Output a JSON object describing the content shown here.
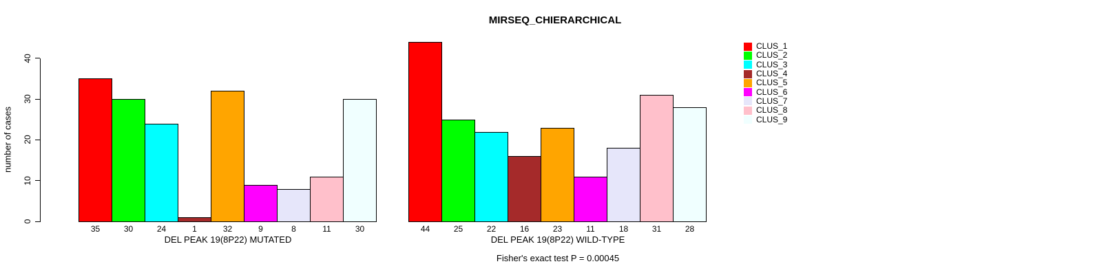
{
  "chart_data": {
    "type": "bar",
    "title": "MIRSEQ_CHIERARCHICAL",
    "ylabel": "number of cases",
    "ylim": [
      0,
      44
    ],
    "yticks": [
      0,
      10,
      20,
      30,
      40
    ],
    "grid": false,
    "legend_position": "right",
    "categories": [
      "CLUS_1",
      "CLUS_2",
      "CLUS_3",
      "CLUS_4",
      "CLUS_5",
      "CLUS_6",
      "CLUS_7",
      "CLUS_8",
      "CLUS_9"
    ],
    "colors": [
      "#FF0000",
      "#00FF00",
      "#00FFFF",
      "#A52A2A",
      "#FFA500",
      "#FF00FF",
      "#E6E6FA",
      "#FFC0CB",
      "#F0FFFF"
    ],
    "panels": [
      {
        "xlabel": "DEL PEAK 19(8P22) MUTATED",
        "values": [
          35,
          30,
          24,
          1,
          32,
          9,
          8,
          11,
          30
        ]
      },
      {
        "xlabel": "DEL PEAK 19(8P22) WILD-TYPE",
        "values": [
          44,
          25,
          22,
          16,
          23,
          11,
          18,
          31,
          28
        ]
      }
    ],
    "annotation": "Fisher's exact test P = 0.00045"
  }
}
